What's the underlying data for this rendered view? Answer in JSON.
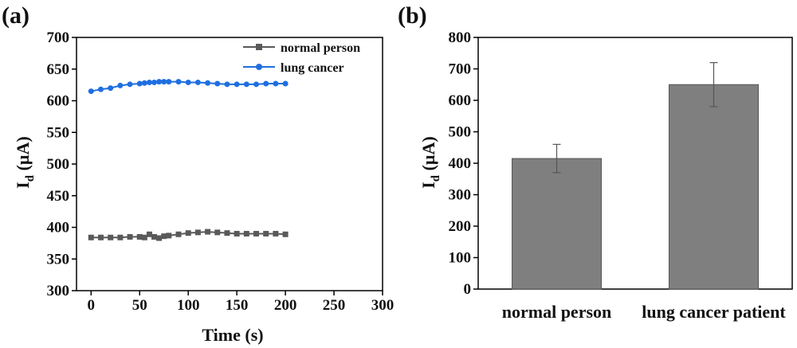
{
  "chart_data": [
    {
      "panel": "(a)",
      "type": "line",
      "xlabel": "Time (s)",
      "ylabel_main": "I",
      "ylabel_sub": "d",
      "ylabel_rest": " (µA)",
      "xlim": [
        -15,
        300
      ],
      "ylim": [
        300,
        700
      ],
      "xticks": [
        0,
        50,
        100,
        150,
        200,
        250,
        300
      ],
      "yticks": [
        300,
        350,
        400,
        450,
        500,
        550,
        600,
        650,
        700
      ],
      "legend_position": "top-right",
      "x": [
        0,
        10,
        20,
        30,
        40,
        50,
        55,
        60,
        65,
        70,
        75,
        80,
        90,
        100,
        110,
        120,
        130,
        140,
        150,
        160,
        170,
        180,
        190,
        200
      ],
      "series": [
        {
          "name": "normal person",
          "color": "#595959",
          "marker": "square",
          "values": [
            384,
            384,
            384,
            384,
            385,
            385,
            384,
            389,
            385,
            383,
            386,
            387,
            389,
            391,
            392,
            393,
            392,
            391,
            390,
            390,
            390,
            390,
            390,
            389
          ]
        },
        {
          "name": "lung cancer",
          "color": "#1f6fe0",
          "marker": "circle",
          "values": [
            615,
            618,
            620,
            624,
            626,
            627,
            628,
            629,
            629,
            630,
            630,
            630,
            630,
            629,
            629,
            628,
            627,
            626,
            626,
            626,
            626,
            627,
            627,
            627
          ]
        }
      ]
    },
    {
      "panel": "(b)",
      "type": "bar",
      "ylabel_main": "I",
      "ylabel_sub": "d",
      "ylabel_rest": " (µA)",
      "ylim": [
        0,
        800
      ],
      "yticks": [
        0,
        100,
        200,
        300,
        400,
        500,
        600,
        700,
        800
      ],
      "categories": [
        "normal person",
        "lung cancer patient"
      ],
      "values": [
        415,
        650
      ],
      "errors": [
        45,
        70
      ],
      "bar_color": "#7f7f7f"
    }
  ]
}
